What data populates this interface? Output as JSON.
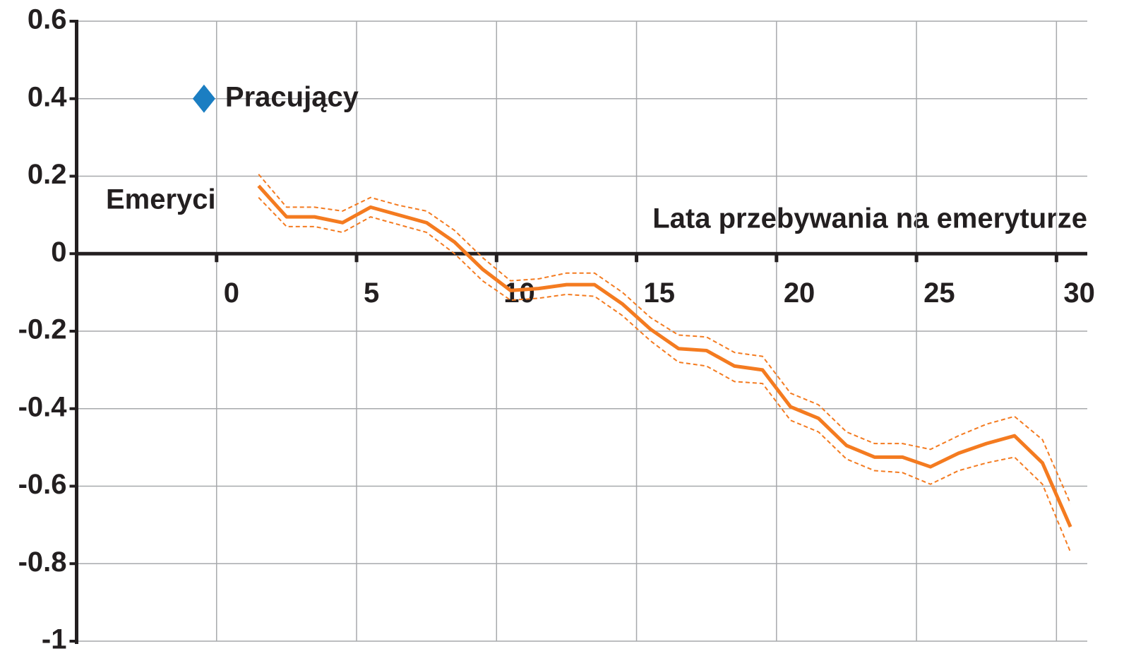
{
  "chart_data": {
    "type": "line",
    "x_label": "Lata przebywania na emeryturze",
    "annotation": "Emeryci",
    "x": [
      1.5,
      2.5,
      3.5,
      4.5,
      5.5,
      6.5,
      7.5,
      8.5,
      9.5,
      10.5,
      11.5,
      12.5,
      13.5,
      14.5,
      15.5,
      16.5,
      17.5,
      18.5,
      19.5,
      20.5,
      21.5,
      22.5,
      23.5,
      24.5,
      25.5,
      26.5,
      27.5,
      28.5,
      29.5,
      30.5
    ],
    "series": [
      {
        "color": "#f47b20",
        "dashed": false,
        "values": [
          0.175,
          0.095,
          0.095,
          0.08,
          0.12,
          0.1,
          0.08,
          0.03,
          -0.04,
          -0.095,
          -0.09,
          -0.08,
          -0.08,
          -0.13,
          -0.195,
          -0.245,
          -0.25,
          -0.29,
          -0.3,
          -0.395,
          -0.425,
          -0.495,
          -0.525,
          -0.525,
          -0.55,
          -0.515,
          -0.49,
          -0.47,
          -0.54,
          -0.705
        ]
      },
      {
        "color": "#f47b20",
        "dashed": true,
        "values": [
          0.205,
          0.12,
          0.12,
          0.11,
          0.145,
          0.125,
          0.11,
          0.06,
          -0.01,
          -0.07,
          -0.065,
          -0.05,
          -0.05,
          -0.1,
          -0.165,
          -0.21,
          -0.215,
          -0.255,
          -0.265,
          -0.36,
          -0.39,
          -0.46,
          -0.49,
          -0.49,
          -0.505,
          -0.47,
          -0.44,
          -0.42,
          -0.48,
          -0.645
        ]
      },
      {
        "color": "#f47b20",
        "dashed": true,
        "values": [
          0.145,
          0.07,
          0.07,
          0.055,
          0.095,
          0.075,
          0.055,
          0.0,
          -0.07,
          -0.12,
          -0.115,
          -0.105,
          -0.11,
          -0.16,
          -0.225,
          -0.28,
          -0.29,
          -0.33,
          -0.335,
          -0.43,
          -0.46,
          -0.53,
          -0.56,
          -0.565,
          -0.595,
          -0.56,
          -0.54,
          -0.525,
          -0.595,
          -0.77
        ]
      }
    ],
    "points": [
      {
        "label": "Pracujący",
        "x": -0.45,
        "y": 0.4,
        "color": "#1b7ec2",
        "marker": "diamond"
      }
    ],
    "xlim": [
      -5,
      31
    ],
    "ylim": [
      -1,
      0.6
    ],
    "xticks": [
      0,
      5,
      10,
      15,
      20,
      25,
      30
    ],
    "yticks": [
      0.6,
      0.4,
      0.2,
      0,
      -0.2,
      -0.4,
      -0.6,
      -0.8,
      -1
    ],
    "grid": true
  }
}
